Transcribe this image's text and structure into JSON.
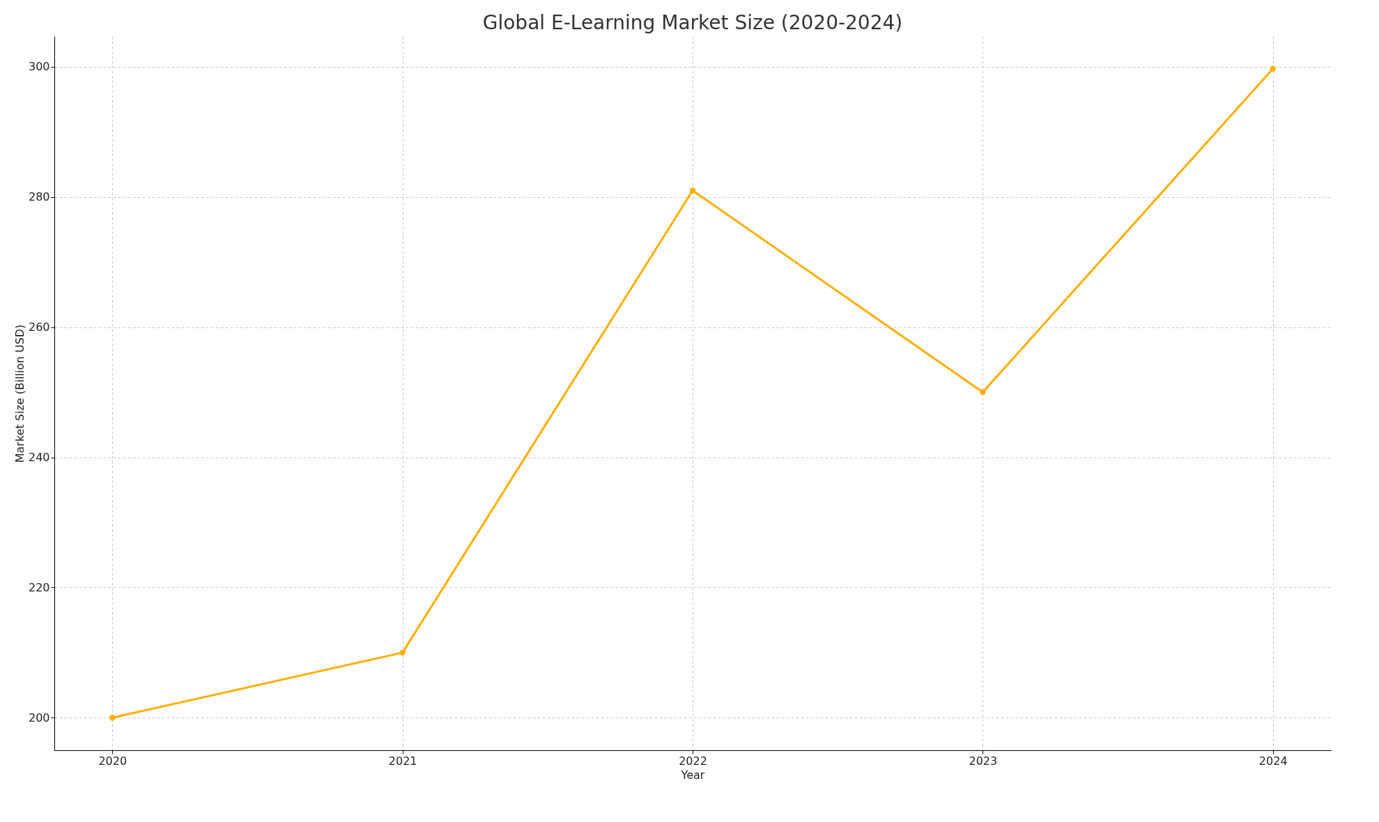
{
  "chart_data": {
    "type": "line",
    "title": "Global E-Learning Market Size (2020-2024)",
    "xlabel": "Year",
    "ylabel": "Market Size (Billion USD)",
    "x": [
      2020,
      2021,
      2022,
      2023,
      2024
    ],
    "series": [
      {
        "color": "#ffae00",
        "values": [
          200,
          210,
          281,
          250,
          299.7
        ]
      }
    ],
    "xlim": [
      2019.8,
      2024.2
    ],
    "xticks": [
      2020,
      2021,
      2022,
      2023,
      2024
    ],
    "ylim": [
      195,
      304.7
    ],
    "yticks": [
      200,
      220,
      240,
      260,
      280,
      300
    ],
    "grid": true,
    "marker": "circle",
    "line_style": "solid"
  }
}
